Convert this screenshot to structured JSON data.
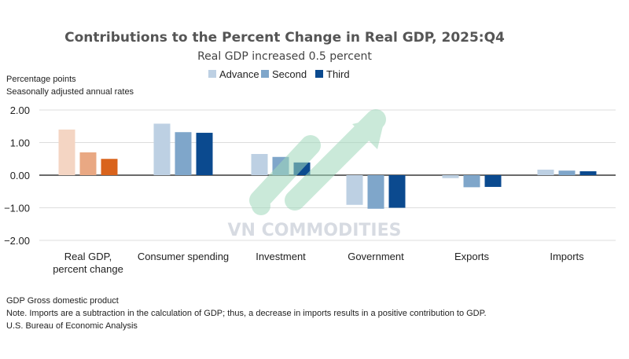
{
  "chart_data": {
    "type": "bar",
    "title": "Contributions to the Percent Change in Real GDP, 2025:Q4",
    "subtitle": "Real GDP increased 0.5 percent",
    "ylabel_lines": [
      "Percentage points",
      "Seasonally adjusted annual rates"
    ],
    "ylim": [
      -2,
      2
    ],
    "yticks": [
      "2.00",
      "1.00",
      "0.00",
      "-1.00",
      "-2.00"
    ],
    "grid": true,
    "legend_position": "top",
    "categories": [
      [
        "Real GDP,",
        "percent change"
      ],
      [
        "Consumer spending"
      ],
      [
        "Investment"
      ],
      [
        "Government"
      ],
      [
        "Exports"
      ],
      [
        "Imports"
      ]
    ],
    "series": [
      {
        "name": "Advance",
        "color": "#bdd0e3",
        "values": [
          1.4,
          1.58,
          0.65,
          -0.91,
          -0.09,
          0.17
        ]
      },
      {
        "name": "Second",
        "color": "#7fa6ca",
        "values": [
          0.7,
          1.32,
          0.56,
          -1.03,
          -0.37,
          0.14
        ]
      },
      {
        "name": "Third",
        "color": "#0b4a8f",
        "values": [
          0.5,
          1.3,
          0.39,
          -1.0,
          -0.36,
          0.12
        ]
      }
    ],
    "highlight_colors": [
      "#f4d5c3",
      "#e9a883",
      "#d9631c"
    ]
  },
  "footnotes": [
    "GDP Gross domestic product",
    "Note. Imports are a subtraction in the calculation of GDP; thus, a decrease in imports results in a positive contribution to GDP.",
    "U.S. Bureau of Economic Analysis"
  ],
  "watermark": "VN COMMODITIES"
}
